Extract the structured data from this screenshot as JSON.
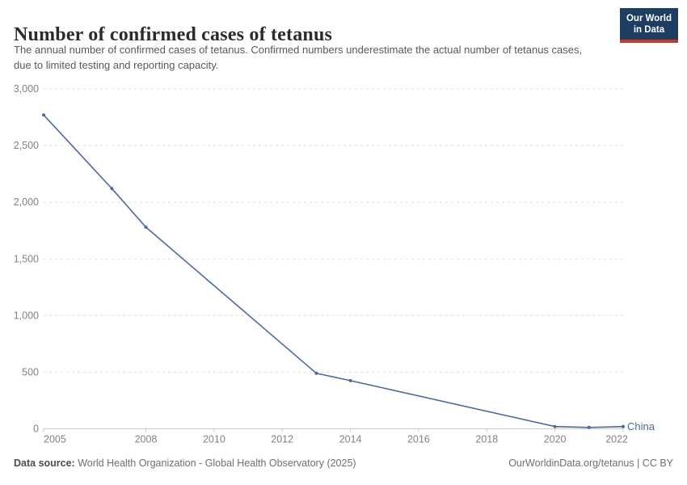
{
  "header": {
    "title": "Number of confirmed cases of tetanus",
    "subtitle": "The annual number of confirmed cases of tetanus. Confirmed numbers underestimate the actual number of tetanus cases, due to limited testing and reporting capacity.",
    "logo": {
      "line1": "Our World",
      "line2": "in Data"
    }
  },
  "chart_data": {
    "type": "line",
    "title": "Number of confirmed cases of tetanus",
    "x": [
      2005,
      2007,
      2008,
      2013,
      2014,
      2020,
      2021,
      2022
    ],
    "series": [
      {
        "name": "China",
        "color": "#4C6A9C",
        "values": [
          2770,
          2120,
          1780,
          490,
          425,
          20,
          12,
          20
        ]
      }
    ],
    "xlim": [
      2005,
      2022
    ],
    "ylim": [
      0,
      3000
    ],
    "x_tick_labels": [
      "2005",
      "2008",
      "2010",
      "2012",
      "2014",
      "2016",
      "2018",
      "2020",
      "2022"
    ],
    "y_tick_values": [
      0,
      500,
      1000,
      1500,
      2000,
      2500,
      3000
    ],
    "y_tick_labels": [
      "0",
      "500",
      "1,000",
      "1,500",
      "2,000",
      "2,500",
      "3,000"
    ],
    "grid": "horizontal-dashed",
    "legend_position": "line-end-label"
  },
  "footer": {
    "datasource_label": "Data source:",
    "datasource_text": " World Health Organization - Global Health Observatory (2025)",
    "link_text": "OurWorldinData.org/tetanus | CC BY"
  },
  "colors": {
    "series_blue": "#4C6A9C",
    "logo_navy": "#1d3d63",
    "logo_red": "#c13a30",
    "gridline": "#dedede",
    "axis_line": "#c9c9c9",
    "axis_text": "#828282"
  }
}
